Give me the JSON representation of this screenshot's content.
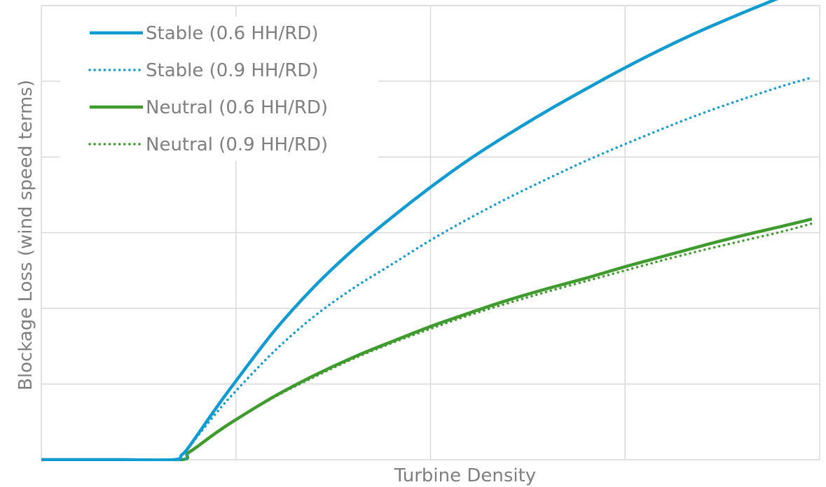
{
  "chart_data": {
    "type": "line",
    "title": "",
    "xlabel": "Turbine Density",
    "ylabel": "Blockage Loss (wind speed terms)",
    "xlim": [
      0,
      4
    ],
    "ylim": [
      0,
      6
    ],
    "x_ticks_labeled": false,
    "y_ticks_labeled": false,
    "grid": true,
    "legend_position": "top-left",
    "series": [
      {
        "name": "Stable (0.6 HH/RD)",
        "color": "#119bd1",
        "style": "solid",
        "x": [
          0.0,
          0.4,
          0.68,
          0.72,
          0.75,
          0.8,
          0.9,
          1.0,
          1.2,
          1.4,
          1.6,
          1.8,
          2.0,
          2.2,
          2.4,
          2.6,
          2.8,
          3.0,
          3.2,
          3.4,
          3.6,
          3.8,
          3.96
        ],
        "values": [
          0.0,
          0.0,
          0.0,
          0.06,
          0.14,
          0.32,
          0.69,
          1.04,
          1.71,
          2.28,
          2.77,
          3.2,
          3.6,
          3.97,
          4.3,
          4.61,
          4.9,
          5.18,
          5.44,
          5.68,
          5.9,
          6.11,
          6.27
        ]
      },
      {
        "name": "Stable (0.9 HH/RD)",
        "color": "#119bd1",
        "style": "dotted",
        "x": [
          0.0,
          0.4,
          0.72,
          0.75,
          0.8,
          0.9,
          1.0,
          1.2,
          1.4,
          1.6,
          1.8,
          2.0,
          2.2,
          2.4,
          2.6,
          2.8,
          3.0,
          3.2,
          3.4,
          3.6,
          3.8,
          3.96
        ],
        "values": [
          0.0,
          0.0,
          0.0,
          0.13,
          0.3,
          0.62,
          0.91,
          1.44,
          1.89,
          2.26,
          2.58,
          2.9,
          3.19,
          3.46,
          3.71,
          3.95,
          4.17,
          4.38,
          4.58,
          4.76,
          4.93,
          5.05
        ]
      },
      {
        "name": "Neutral (0.6 HH/RD)",
        "color": "#3f9b2e",
        "style": "solid",
        "x": [
          0.0,
          0.4,
          0.72,
          0.75,
          0.8,
          0.9,
          1.0,
          1.2,
          1.4,
          1.6,
          1.8,
          2.0,
          2.2,
          2.4,
          2.6,
          2.8,
          3.0,
          3.2,
          3.4,
          3.6,
          3.8,
          3.96
        ],
        "values": [
          0.0,
          0.0,
          0.0,
          0.08,
          0.17,
          0.36,
          0.53,
          0.84,
          1.11,
          1.35,
          1.56,
          1.76,
          1.94,
          2.11,
          2.26,
          2.4,
          2.55,
          2.69,
          2.83,
          2.96,
          3.08,
          3.18
        ]
      },
      {
        "name": "Neutral (0.9 HH/RD)",
        "color": "#3f9b2e",
        "style": "dotted",
        "x": [
          0.0,
          0.4,
          0.72,
          0.75,
          0.8,
          0.9,
          1.0,
          1.2,
          1.4,
          1.6,
          1.8,
          2.0,
          2.2,
          2.4,
          2.6,
          2.8,
          3.0,
          3.2,
          3.4,
          3.6,
          3.8,
          3.96
        ],
        "values": [
          0.0,
          0.0,
          0.0,
          0.08,
          0.17,
          0.36,
          0.53,
          0.83,
          1.09,
          1.33,
          1.54,
          1.73,
          1.91,
          2.07,
          2.22,
          2.36,
          2.5,
          2.64,
          2.77,
          2.89,
          3.01,
          3.12
        ]
      }
    ]
  }
}
